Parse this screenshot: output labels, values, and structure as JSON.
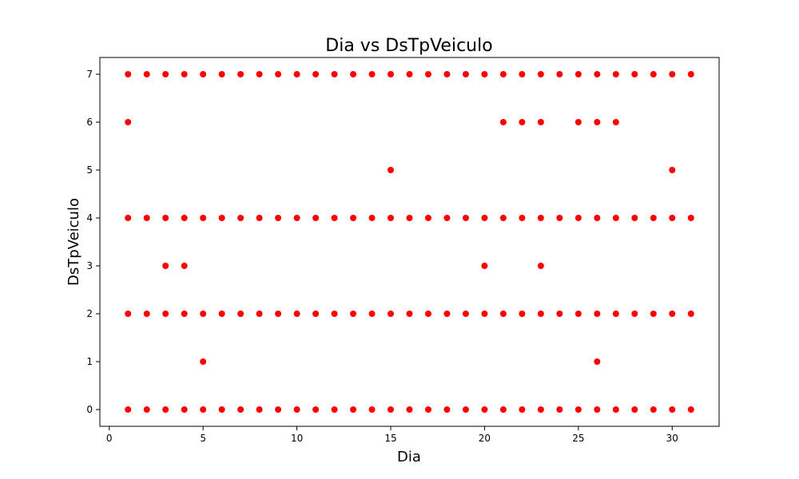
{
  "chart_data": {
    "type": "scatter",
    "title": "Dia vs DsTpVeiculo",
    "xlabel": "Dia",
    "ylabel": "DsTpVeiculo",
    "xlim": [
      -0.5,
      32.5
    ],
    "ylim": [
      -0.35,
      7.35
    ],
    "xticks": [
      0,
      5,
      10,
      15,
      20,
      25,
      30
    ],
    "yticks": [
      0,
      1,
      2,
      3,
      4,
      5,
      6,
      7
    ],
    "grid": false,
    "legend": "none",
    "marker_color": "#ff0000",
    "points": [
      [
        1,
        0
      ],
      [
        1,
        2
      ],
      [
        1,
        4
      ],
      [
        1,
        6
      ],
      [
        1,
        7
      ],
      [
        2,
        0
      ],
      [
        2,
        2
      ],
      [
        2,
        4
      ],
      [
        2,
        7
      ],
      [
        3,
        0
      ],
      [
        3,
        2
      ],
      [
        3,
        3
      ],
      [
        3,
        4
      ],
      [
        3,
        7
      ],
      [
        4,
        0
      ],
      [
        4,
        2
      ],
      [
        4,
        3
      ],
      [
        4,
        4
      ],
      [
        4,
        7
      ],
      [
        5,
        0
      ],
      [
        5,
        1
      ],
      [
        5,
        2
      ],
      [
        5,
        4
      ],
      [
        5,
        7
      ],
      [
        6,
        0
      ],
      [
        6,
        2
      ],
      [
        6,
        4
      ],
      [
        6,
        7
      ],
      [
        7,
        0
      ],
      [
        7,
        2
      ],
      [
        7,
        4
      ],
      [
        7,
        7
      ],
      [
        8,
        0
      ],
      [
        8,
        2
      ],
      [
        8,
        4
      ],
      [
        8,
        7
      ],
      [
        9,
        0
      ],
      [
        9,
        2
      ],
      [
        9,
        4
      ],
      [
        9,
        7
      ],
      [
        10,
        0
      ],
      [
        10,
        2
      ],
      [
        10,
        4
      ],
      [
        10,
        7
      ],
      [
        11,
        0
      ],
      [
        11,
        2
      ],
      [
        11,
        4
      ],
      [
        11,
        7
      ],
      [
        12,
        0
      ],
      [
        12,
        2
      ],
      [
        12,
        4
      ],
      [
        12,
        7
      ],
      [
        13,
        0
      ],
      [
        13,
        2
      ],
      [
        13,
        4
      ],
      [
        13,
        7
      ],
      [
        14,
        0
      ],
      [
        14,
        2
      ],
      [
        14,
        4
      ],
      [
        14,
        7
      ],
      [
        15,
        0
      ],
      [
        15,
        2
      ],
      [
        15,
        4
      ],
      [
        15,
        5
      ],
      [
        15,
        7
      ],
      [
        16,
        0
      ],
      [
        16,
        2
      ],
      [
        16,
        4
      ],
      [
        16,
        7
      ],
      [
        17,
        0
      ],
      [
        17,
        2
      ],
      [
        17,
        4
      ],
      [
        17,
        7
      ],
      [
        18,
        0
      ],
      [
        18,
        2
      ],
      [
        18,
        4
      ],
      [
        18,
        7
      ],
      [
        19,
        0
      ],
      [
        19,
        2
      ],
      [
        19,
        4
      ],
      [
        19,
        7
      ],
      [
        20,
        0
      ],
      [
        20,
        2
      ],
      [
        20,
        3
      ],
      [
        20,
        4
      ],
      [
        20,
        7
      ],
      [
        21,
        0
      ],
      [
        21,
        2
      ],
      [
        21,
        4
      ],
      [
        21,
        6
      ],
      [
        21,
        7
      ],
      [
        22,
        0
      ],
      [
        22,
        2
      ],
      [
        22,
        4
      ],
      [
        22,
        6
      ],
      [
        22,
        7
      ],
      [
        23,
        0
      ],
      [
        23,
        2
      ],
      [
        23,
        3
      ],
      [
        23,
        4
      ],
      [
        23,
        6
      ],
      [
        23,
        7
      ],
      [
        24,
        0
      ],
      [
        24,
        2
      ],
      [
        24,
        4
      ],
      [
        24,
        7
      ],
      [
        25,
        0
      ],
      [
        25,
        2
      ],
      [
        25,
        4
      ],
      [
        25,
        6
      ],
      [
        25,
        7
      ],
      [
        26,
        0
      ],
      [
        26,
        1
      ],
      [
        26,
        2
      ],
      [
        26,
        4
      ],
      [
        26,
        6
      ],
      [
        26,
        7
      ],
      [
        27,
        0
      ],
      [
        27,
        2
      ],
      [
        27,
        4
      ],
      [
        27,
        6
      ],
      [
        27,
        7
      ],
      [
        28,
        0
      ],
      [
        28,
        2
      ],
      [
        28,
        4
      ],
      [
        28,
        7
      ],
      [
        29,
        0
      ],
      [
        29,
        2
      ],
      [
        29,
        4
      ],
      [
        29,
        7
      ],
      [
        30,
        0
      ],
      [
        30,
        2
      ],
      [
        30,
        4
      ],
      [
        30,
        5
      ],
      [
        30,
        7
      ],
      [
        31,
        0
      ],
      [
        31,
        2
      ],
      [
        31,
        4
      ],
      [
        31,
        7
      ]
    ]
  }
}
